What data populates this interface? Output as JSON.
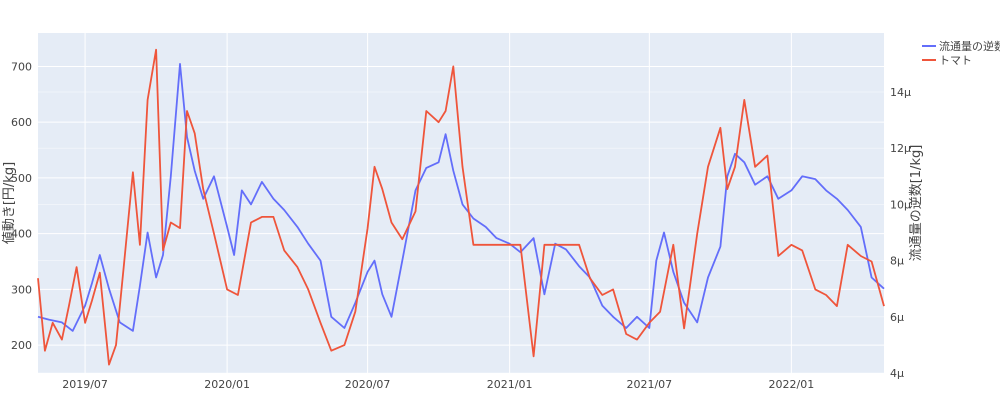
{
  "chart_data": {
    "type": "line",
    "title": "",
    "ylabel": "値動き[円/kg]",
    "y2label": "流通量の逆数[1/kg]",
    "ylim": [
      150,
      760
    ],
    "y2lim": [
      4,
      16.1
    ],
    "xlim": [
      "2019-05-01",
      "2022-05-01"
    ],
    "grid": true,
    "legend_position": "top-right",
    "x_ticks": [
      "2019/07",
      "2020/01",
      "2020/07",
      "2021/01",
      "2021/07",
      "2022/01"
    ],
    "x_tick_dates": [
      "2019-07-01",
      "2020-01-01",
      "2020-07-01",
      "2021-01-01",
      "2021-07-01",
      "2022-01-01"
    ],
    "y_ticks": [
      200,
      300,
      400,
      500,
      600,
      700
    ],
    "y2_ticks": [
      4,
      6,
      8,
      10,
      12,
      14
    ],
    "y2_tick_labels": [
      "4μ",
      "6μ",
      "8μ",
      "10μ",
      "12μ",
      "14μ"
    ],
    "series": [
      {
        "name": "流通量の逆数",
        "axis": "y2",
        "color": "#636efa",
        "x": [
          "2019-05-01",
          "2019-05-15",
          "2019-06-01",
          "2019-06-15",
          "2019-07-01",
          "2019-07-10",
          "2019-07-20",
          "2019-08-01",
          "2019-08-15",
          "2019-09-01",
          "2019-09-10",
          "2019-09-20",
          "2019-10-01",
          "2019-10-10",
          "2019-10-20",
          "2019-11-01",
          "2019-11-10",
          "2019-11-20",
          "2019-12-01",
          "2019-12-15",
          "2020-01-01",
          "2020-01-10",
          "2020-01-20",
          "2020-02-01",
          "2020-02-15",
          "2020-03-01",
          "2020-03-15",
          "2020-04-01",
          "2020-04-15",
          "2020-05-01",
          "2020-05-15",
          "2020-06-01",
          "2020-06-15",
          "2020-07-01",
          "2020-07-10",
          "2020-07-20",
          "2020-08-01",
          "2020-08-15",
          "2020-09-01",
          "2020-09-15",
          "2020-10-01",
          "2020-10-10",
          "2020-10-20",
          "2020-11-01",
          "2020-11-15",
          "2020-12-01",
          "2020-12-15",
          "2021-01-01",
          "2021-01-15",
          "2021-02-01",
          "2021-02-15",
          "2021-03-01",
          "2021-03-15",
          "2021-04-01",
          "2021-04-15",
          "2021-05-01",
          "2021-05-15",
          "2021-06-01",
          "2021-06-15",
          "2021-07-01",
          "2021-07-10",
          "2021-07-20",
          "2021-08-01",
          "2021-08-15",
          "2021-09-01",
          "2021-09-15",
          "2021-10-01",
          "2021-10-10",
          "2021-10-20",
          "2021-11-01",
          "2021-11-15",
          "2021-12-01",
          "2021-12-15",
          "2022-01-01",
          "2022-01-15",
          "2022-02-01",
          "2022-02-15",
          "2022-03-01",
          "2022-03-15",
          "2022-04-01",
          "2022-04-15",
          "2022-05-01"
        ],
        "values": [
          6.0,
          5.9,
          5.8,
          5.5,
          6.4,
          7.2,
          8.2,
          7.0,
          5.8,
          5.5,
          7.1,
          9.0,
          7.4,
          8.2,
          11.0,
          15.0,
          12.4,
          11.2,
          10.2,
          11.0,
          9.2,
          8.2,
          10.5,
          10.0,
          10.8,
          10.2,
          9.8,
          9.2,
          8.6,
          8.0,
          6.0,
          5.6,
          6.5,
          7.6,
          8.0,
          6.8,
          6.0,
          8.0,
          10.5,
          11.3,
          11.5,
          12.5,
          11.2,
          10.0,
          9.5,
          9.2,
          8.8,
          8.6,
          8.3,
          8.8,
          6.8,
          8.6,
          8.4,
          7.8,
          7.4,
          6.4,
          6.0,
          5.6,
          6.0,
          5.6,
          8.0,
          9.0,
          7.6,
          6.5,
          5.8,
          7.4,
          8.5,
          11.0,
          11.8,
          11.5,
          10.7,
          11.0,
          10.2,
          10.5,
          11.0,
          10.9,
          10.5,
          10.2,
          9.8,
          9.2,
          7.4,
          7.0
        ]
      },
      {
        "name": "トマト",
        "axis": "y",
        "color": "#ef553b",
        "x": [
          "2019-05-01",
          "2019-05-10",
          "2019-05-20",
          "2019-06-01",
          "2019-06-10",
          "2019-06-20",
          "2019-07-01",
          "2019-07-10",
          "2019-07-20",
          "2019-08-01",
          "2019-08-10",
          "2019-08-20",
          "2019-09-01",
          "2019-09-10",
          "2019-09-20",
          "2019-10-01",
          "2019-10-10",
          "2019-10-20",
          "2019-11-01",
          "2019-11-10",
          "2019-11-20",
          "2019-12-01",
          "2019-12-15",
          "2020-01-01",
          "2020-01-15",
          "2020-02-01",
          "2020-02-15",
          "2020-03-01",
          "2020-03-15",
          "2020-04-01",
          "2020-04-15",
          "2020-05-01",
          "2020-05-15",
          "2020-06-01",
          "2020-06-15",
          "2020-07-01",
          "2020-07-10",
          "2020-07-20",
          "2020-08-01",
          "2020-08-15",
          "2020-09-01",
          "2020-09-15",
          "2020-10-01",
          "2020-10-10",
          "2020-10-20",
          "2020-11-01",
          "2020-11-15",
          "2020-12-01",
          "2020-12-15",
          "2021-01-01",
          "2021-01-15",
          "2021-02-01",
          "2021-02-15",
          "2021-03-01",
          "2021-03-15",
          "2021-04-01",
          "2021-04-15",
          "2021-05-01",
          "2021-05-15",
          "2021-06-01",
          "2021-06-15",
          "2021-07-01",
          "2021-07-15",
          "2021-08-01",
          "2021-08-15",
          "2021-09-01",
          "2021-09-15",
          "2021-10-01",
          "2021-10-10",
          "2021-10-20",
          "2021-11-01",
          "2021-11-15",
          "2021-12-01",
          "2021-12-15",
          "2022-01-01",
          "2022-01-15",
          "2022-02-01",
          "2022-02-15",
          "2022-03-01",
          "2022-03-15",
          "2022-04-01",
          "2022-04-15",
          "2022-05-01"
        ],
        "values": [
          320,
          190,
          240,
          210,
          270,
          340,
          240,
          280,
          330,
          165,
          200,
          340,
          510,
          380,
          640,
          730,
          370,
          420,
          410,
          620,
          580,
          480,
          400,
          300,
          290,
          420,
          430,
          430,
          370,
          340,
          300,
          240,
          190,
          200,
          260,
          410,
          520,
          480,
          420,
          390,
          440,
          620,
          600,
          620,
          700,
          520,
          380,
          380,
          380,
          380,
          380,
          180,
          380,
          380,
          380,
          380,
          320,
          290,
          300,
          220,
          210,
          240,
          260,
          380,
          230,
          400,
          520,
          590,
          480,
          520,
          640,
          520,
          540,
          360,
          380,
          370,
          300,
          290,
          270,
          380,
          360,
          350,
          270
        ]
      }
    ]
  }
}
